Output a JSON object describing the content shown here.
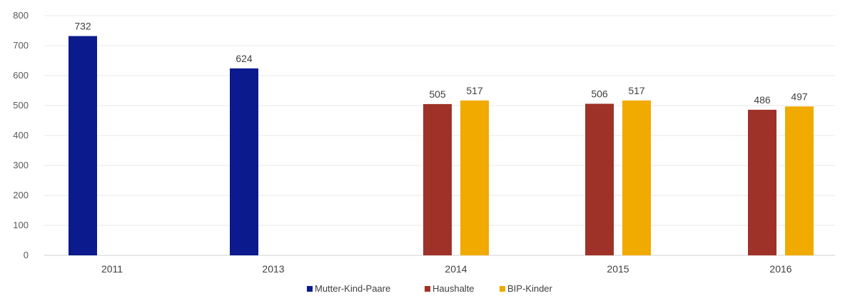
{
  "chart_data": {
    "type": "bar",
    "title": "",
    "xlabel": "",
    "ylabel": "",
    "ylim": [
      0,
      800
    ],
    "y_ticks": [
      0,
      100,
      200,
      300,
      400,
      500,
      600,
      700,
      800
    ],
    "grid": "horizontal",
    "legend_position": "bottom",
    "data_labels": true,
    "categories": [
      "2011",
      "2013",
      "2014",
      "2015",
      "2016"
    ],
    "series": [
      {
        "name": "Mutter-Kind-Paare",
        "color": "#0b1a8c",
        "values": [
          732,
          624,
          null,
          null,
          null
        ]
      },
      {
        "name": "Haushalte",
        "color": "#9e3228",
        "values": [
          null,
          null,
          505,
          506,
          486
        ]
      },
      {
        "name": "BIP-Kinder",
        "color": "#f0aa00",
        "values": [
          null,
          null,
          517,
          517,
          497
        ]
      }
    ]
  }
}
